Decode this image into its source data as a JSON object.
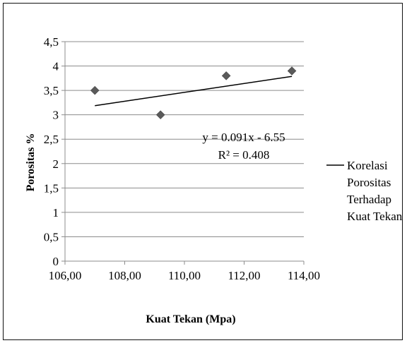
{
  "chart_data": {
    "type": "scatter",
    "title": "",
    "xlabel": "Kuat Tekan (Mpa)",
    "ylabel": "Porositas %",
    "xlim": [
      106,
      114
    ],
    "ylim": [
      0,
      4.5
    ],
    "x_ticks": [
      "106,00",
      "108,00",
      "110,00",
      "112,00",
      "114,00"
    ],
    "y_ticks": [
      "0",
      "0,5",
      "1",
      "1,5",
      "2",
      "2,5",
      "3",
      "3,5",
      "4",
      "4,5"
    ],
    "grid": "horizontal",
    "series": [
      {
        "points": [
          {
            "x": 107.0,
            "y": 3.5
          },
          {
            "x": 109.2,
            "y": 3.0
          },
          {
            "x": 111.4,
            "y": 3.8
          },
          {
            "x": 113.6,
            "y": 3.9
          }
        ],
        "marker": "diamond",
        "color": "#5a5a5a"
      }
    ],
    "trendline": {
      "name": "Korelasi Porositas Terhadap Kuat Tekan",
      "slope": 0.091,
      "intercept": -6.55,
      "x_range": [
        107.0,
        113.6
      ],
      "equation": "y = 0.091x - 6.55",
      "r_squared": "R² = 0.408",
      "color": "#000000"
    },
    "legend": {
      "position": "right",
      "lines": [
        "Korelasi",
        "Porositas",
        "Terhadap",
        "Kuat Tekan"
      ]
    }
  }
}
